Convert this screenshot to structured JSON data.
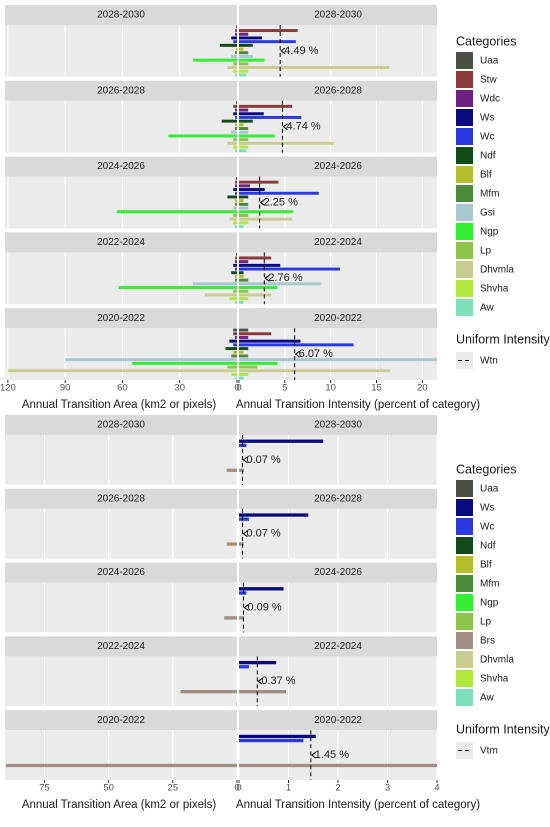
{
  "chart_data": [
    {
      "type": "bar",
      "periods": [
        "2028-2030",
        "2026-2028",
        "2024-2026",
        "2022-2024",
        "2020-2022"
      ],
      "categories": [
        "Uaa",
        "Stw",
        "Wdc",
        "Ws",
        "Wc",
        "Ndf",
        "Blf",
        "Mfm",
        "Gsi",
        "Ngp",
        "Lp",
        "Dhvmla",
        "Shvha",
        "Aw"
      ],
      "colors": [
        "#4a5245",
        "#8a3a3a",
        "#70207f",
        "#0a0a80",
        "#2a3ae0",
        "#134a1a",
        "#b5bd2a",
        "#4a8a3a",
        "#a8c8d0",
        "#33ee33",
        "#8cc34a",
        "#c8cd8f",
        "#b0e840",
        "#7de0b8"
      ],
      "area": [
        [
          0.5,
          1,
          1,
          3,
          2,
          9,
          0.5,
          1,
          3,
          23,
          2,
          5,
          2,
          1
        ],
        [
          0.5,
          2,
          1,
          2,
          1,
          8,
          1,
          1,
          3,
          36,
          2,
          5,
          2,
          1
        ],
        [
          0.5,
          1,
          1,
          2,
          1,
          5,
          1,
          1,
          2,
          63,
          2,
          4,
          2,
          1
        ],
        [
          0.5,
          1,
          1,
          2,
          1,
          3,
          1,
          1,
          23,
          62,
          2,
          17,
          4,
          1
        ],
        [
          2,
          2,
          1,
          4,
          2,
          6,
          2,
          3,
          90,
          55,
          5,
          120,
          3,
          1
        ]
      ],
      "intensity": [
        [
          0,
          6.4,
          1,
          2.5,
          6.2,
          1.5,
          0.5,
          1,
          1.5,
          2.8,
          1,
          16.4,
          1,
          0.8
        ],
        [
          0,
          5.8,
          1,
          2.7,
          6.8,
          1.5,
          0.5,
          1,
          1,
          3.9,
          1,
          10.4,
          1,
          0.8
        ],
        [
          0,
          4.3,
          1.2,
          2.8,
          8.7,
          1,
          0.5,
          1,
          1,
          5.9,
          1,
          5.8,
          1,
          0.5
        ],
        [
          0,
          3.5,
          1,
          4.5,
          11,
          0.5,
          0.5,
          1,
          9,
          4.2,
          1,
          3.5,
          1,
          0.5
        ],
        [
          1,
          3.5,
          1,
          6.7,
          12.5,
          1,
          0.5,
          1,
          21.6,
          4.2,
          2,
          16.5,
          1,
          0.5
        ]
      ],
      "uniform_intensity": [
        4.49,
        4.74,
        2.25,
        2.76,
        6.07
      ],
      "uniform_value_labels": [
        "4.49 %",
        "4.74 %",
        "2.25 %",
        "2.76 %",
        "6.07 %"
      ],
      "left_xlim": [
        121.5,
        0
      ],
      "left_xticks": [
        120,
        90,
        60,
        30,
        0
      ],
      "right_xlim": [
        0,
        21.6
      ],
      "right_xticks": [
        0,
        5,
        10,
        15,
        20
      ],
      "left_xlabel": "Annual Transition Area (km2 or pixels)",
      "right_xlabel": "Annual Transition Intensity (percent of category)",
      "legend_title": "Categories",
      "uniform_legend_title": "Uniform Intensity",
      "uniform_legend_name": "Wtn"
    },
    {
      "type": "bar",
      "periods": [
        "2028-2030",
        "2026-2028",
        "2024-2026",
        "2022-2024",
        "2020-2022"
      ],
      "categories": [
        "Uaa",
        "Ws",
        "Wc",
        "Ndf",
        "Blf",
        "Mfm",
        "Ngp",
        "Lp",
        "Brs",
        "Dhvmla",
        "Shvha",
        "Aw"
      ],
      "colors": [
        "#4a5245",
        "#0a0a80",
        "#2a3ae0",
        "#134a1a",
        "#b5bd2a",
        "#4a8a3a",
        "#33ee33",
        "#8cc34a",
        "#a08f82",
        "#c8cd8f",
        "#b0e840",
        "#7de0b8"
      ],
      "area": [
        [
          0,
          0,
          0,
          0,
          0,
          0,
          0,
          0,
          4,
          0,
          0,
          0
        ],
        [
          0,
          0,
          0,
          0,
          0,
          0,
          0,
          0,
          4,
          0,
          0,
          0
        ],
        [
          0,
          0,
          0,
          0,
          0,
          0,
          0,
          0,
          5,
          0,
          0,
          0
        ],
        [
          0,
          0,
          0,
          0,
          0,
          0,
          0,
          0,
          22,
          0,
          0,
          0.3
        ],
        [
          0,
          0,
          0,
          0,
          0,
          0,
          0,
          0,
          90,
          0,
          0,
          0
        ]
      ],
      "intensity": [
        [
          0,
          1.7,
          0.15,
          0,
          0,
          0,
          0,
          0,
          0.1,
          0,
          0,
          0
        ],
        [
          0,
          1.4,
          0.2,
          0,
          0,
          0,
          0,
          0,
          0.1,
          0,
          0,
          0
        ],
        [
          0,
          0.9,
          0.15,
          0,
          0,
          0,
          0,
          0,
          0.1,
          0,
          0,
          0
        ],
        [
          0,
          0.75,
          0.2,
          0,
          0,
          0,
          0,
          0,
          0.95,
          0,
          0,
          0
        ],
        [
          0,
          1.55,
          1.3,
          0,
          0,
          0,
          0,
          0,
          4,
          0,
          0,
          0
        ]
      ],
      "uniform_intensity": [
        0.07,
        0.07,
        0.09,
        0.37,
        1.45
      ],
      "uniform_value_labels": [
        "0.07 %",
        "0.07 %",
        "0.09 %",
        "0.37 %",
        "1.45 %"
      ],
      "left_xlim": [
        90.4,
        0
      ],
      "left_xticks": [
        75,
        50,
        25,
        0
      ],
      "right_xlim": [
        0,
        4
      ],
      "right_xticks": [
        0,
        1,
        2,
        3,
        4
      ],
      "left_xlabel": "Annual Transition Area (km2 or pixels)",
      "right_xlabel": "Annual Transition Intensity (percent of category)",
      "legend_title": "Categories",
      "uniform_legend_title": "Uniform Intensity",
      "uniform_legend_name": "Vtm"
    }
  ]
}
